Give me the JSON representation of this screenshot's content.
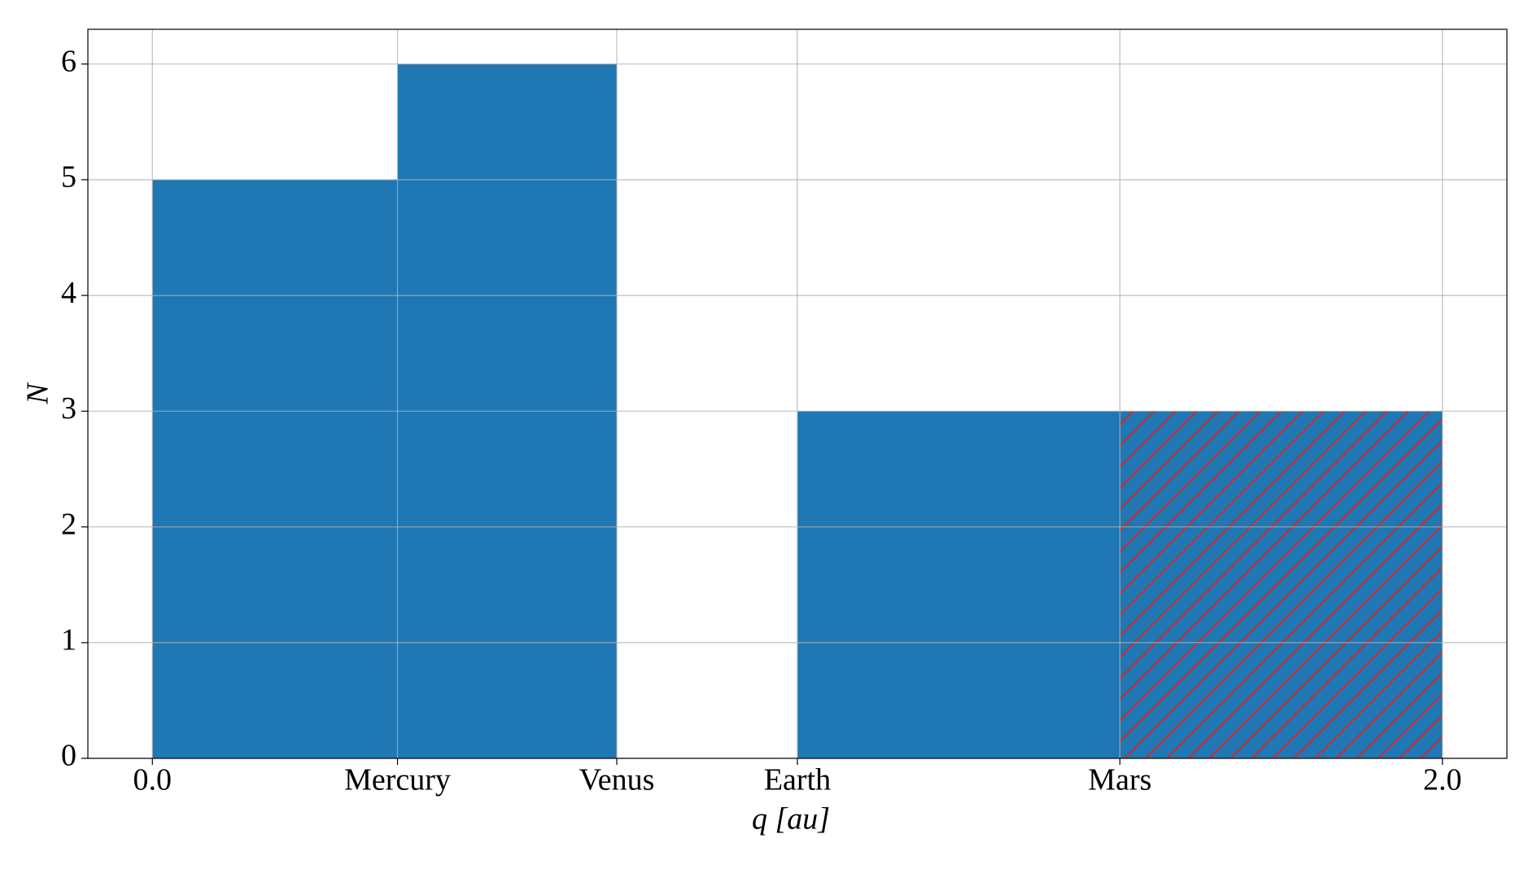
{
  "chart_data": {
    "type": "histogram",
    "x_label": "q [au]",
    "y_label": "N",
    "bins": [
      0,
      0.38,
      0.72,
      1.0,
      1.5,
      2.0
    ],
    "values": [
      5,
      6,
      0,
      3,
      3
    ],
    "color": "#1f77b4",
    "hatch": [
      false,
      false,
      false,
      false,
      true
    ],
    "hatch_color": "#d62728",
    "xlim": [
      -0.1,
      2.1
    ],
    "ylim": [
      0,
      6.3
    ],
    "xticks": [
      {
        "value": 0,
        "label": "0.0"
      },
      {
        "value": 0.38,
        "label": "Mercury"
      },
      {
        "value": 0.72,
        "label": "Venus"
      },
      {
        "value": 1.0,
        "label": "Earth"
      },
      {
        "value": 1.5,
        "label": "Mars"
      },
      {
        "value": 2.0,
        "label": "2.0"
      }
    ],
    "yticks": [
      0,
      1,
      2,
      3,
      4,
      5,
      6
    ],
    "grid": true
  }
}
